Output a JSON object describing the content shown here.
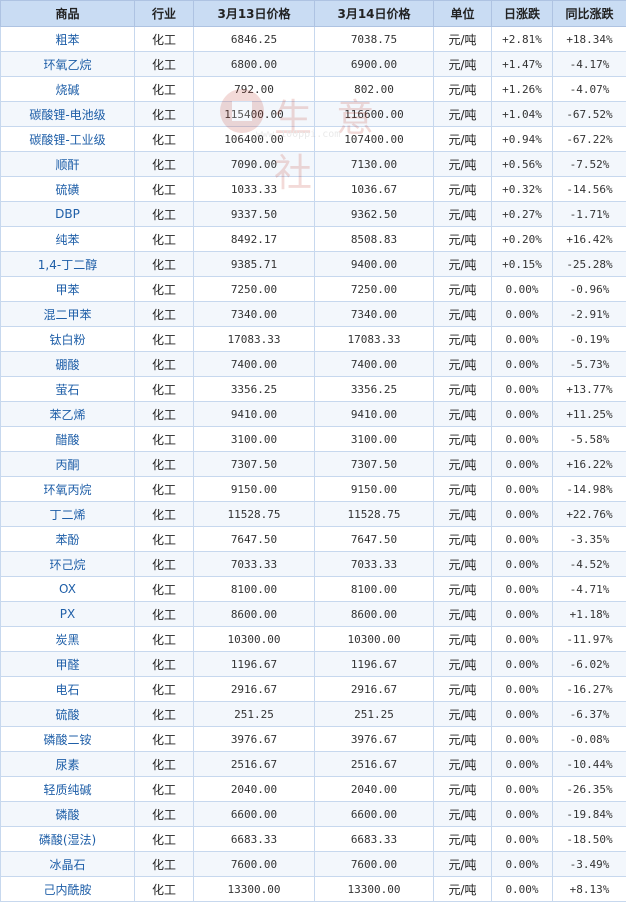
{
  "table": {
    "headers": [
      "商品",
      "行业",
      "3月13日价格",
      "3月14日价格",
      "单位",
      "日涨跌",
      "同比涨跌"
    ],
    "rows": [
      {
        "name": "粗苯",
        "industry": "化工",
        "p13": "6846.25",
        "p14": "7038.75",
        "unit": "元/吨",
        "daily": "+2.81%",
        "yoy": "+18.34%"
      },
      {
        "name": "环氧乙烷",
        "industry": "化工",
        "p13": "6800.00",
        "p14": "6900.00",
        "unit": "元/吨",
        "daily": "+1.47%",
        "yoy": "-4.17%"
      },
      {
        "name": "烧碱",
        "industry": "化工",
        "p13": "792.00",
        "p14": "802.00",
        "unit": "元/吨",
        "daily": "+1.26%",
        "yoy": "-4.07%"
      },
      {
        "name": "碳酸锂-电池级",
        "industry": "化工",
        "p13": "115400.00",
        "p14": "116600.00",
        "unit": "元/吨",
        "daily": "+1.04%",
        "yoy": "-67.52%"
      },
      {
        "name": "碳酸锂-工业级",
        "industry": "化工",
        "p13": "106400.00",
        "p14": "107400.00",
        "unit": "元/吨",
        "daily": "+0.94%",
        "yoy": "-67.22%"
      },
      {
        "name": "顺酐",
        "industry": "化工",
        "p13": "7090.00",
        "p14": "7130.00",
        "unit": "元/吨",
        "daily": "+0.56%",
        "yoy": "-7.52%"
      },
      {
        "name": "硫磺",
        "industry": "化工",
        "p13": "1033.33",
        "p14": "1036.67",
        "unit": "元/吨",
        "daily": "+0.32%",
        "yoy": "-14.56%"
      },
      {
        "name": "DBP",
        "industry": "化工",
        "p13": "9337.50",
        "p14": "9362.50",
        "unit": "元/吨",
        "daily": "+0.27%",
        "yoy": "-1.71%"
      },
      {
        "name": "纯苯",
        "industry": "化工",
        "p13": "8492.17",
        "p14": "8508.83",
        "unit": "元/吨",
        "daily": "+0.20%",
        "yoy": "+16.42%"
      },
      {
        "name": "1,4-丁二醇",
        "industry": "化工",
        "p13": "9385.71",
        "p14": "9400.00",
        "unit": "元/吨",
        "daily": "+0.15%",
        "yoy": "-25.28%"
      },
      {
        "name": "甲苯",
        "industry": "化工",
        "p13": "7250.00",
        "p14": "7250.00",
        "unit": "元/吨",
        "daily": "0.00%",
        "yoy": "-0.96%"
      },
      {
        "name": "混二甲苯",
        "industry": "化工",
        "p13": "7340.00",
        "p14": "7340.00",
        "unit": "元/吨",
        "daily": "0.00%",
        "yoy": "-2.91%"
      },
      {
        "name": "钛白粉",
        "industry": "化工",
        "p13": "17083.33",
        "p14": "17083.33",
        "unit": "元/吨",
        "daily": "0.00%",
        "yoy": "-0.19%"
      },
      {
        "name": "硼酸",
        "industry": "化工",
        "p13": "7400.00",
        "p14": "7400.00",
        "unit": "元/吨",
        "daily": "0.00%",
        "yoy": "-5.73%"
      },
      {
        "name": "萤石",
        "industry": "化工",
        "p13": "3356.25",
        "p14": "3356.25",
        "unit": "元/吨",
        "daily": "0.00%",
        "yoy": "+13.77%"
      },
      {
        "name": "苯乙烯",
        "industry": "化工",
        "p13": "9410.00",
        "p14": "9410.00",
        "unit": "元/吨",
        "daily": "0.00%",
        "yoy": "+11.25%"
      },
      {
        "name": "醋酸",
        "industry": "化工",
        "p13": "3100.00",
        "p14": "3100.00",
        "unit": "元/吨",
        "daily": "0.00%",
        "yoy": "-5.58%"
      },
      {
        "name": "丙酮",
        "industry": "化工",
        "p13": "7307.50",
        "p14": "7307.50",
        "unit": "元/吨",
        "daily": "0.00%",
        "yoy": "+16.22%"
      },
      {
        "name": "环氧丙烷",
        "industry": "化工",
        "p13": "9150.00",
        "p14": "9150.00",
        "unit": "元/吨",
        "daily": "0.00%",
        "yoy": "-14.98%"
      },
      {
        "name": "丁二烯",
        "industry": "化工",
        "p13": "11528.75",
        "p14": "11528.75",
        "unit": "元/吨",
        "daily": "0.00%",
        "yoy": "+22.76%"
      },
      {
        "name": "苯酚",
        "industry": "化工",
        "p13": "7647.50",
        "p14": "7647.50",
        "unit": "元/吨",
        "daily": "0.00%",
        "yoy": "-3.35%"
      },
      {
        "name": "环己烷",
        "industry": "化工",
        "p13": "7033.33",
        "p14": "7033.33",
        "unit": "元/吨",
        "daily": "0.00%",
        "yoy": "-4.52%"
      },
      {
        "name": "OX",
        "industry": "化工",
        "p13": "8100.00",
        "p14": "8100.00",
        "unit": "元/吨",
        "daily": "0.00%",
        "yoy": "-4.71%"
      },
      {
        "name": "PX",
        "industry": "化工",
        "p13": "8600.00",
        "p14": "8600.00",
        "unit": "元/吨",
        "daily": "0.00%",
        "yoy": "+1.18%"
      },
      {
        "name": "炭黑",
        "industry": "化工",
        "p13": "10300.00",
        "p14": "10300.00",
        "unit": "元/吨",
        "daily": "0.00%",
        "yoy": "-11.97%"
      },
      {
        "name": "甲醛",
        "industry": "化工",
        "p13": "1196.67",
        "p14": "1196.67",
        "unit": "元/吨",
        "daily": "0.00%",
        "yoy": "-6.02%"
      },
      {
        "name": "电石",
        "industry": "化工",
        "p13": "2916.67",
        "p14": "2916.67",
        "unit": "元/吨",
        "daily": "0.00%",
        "yoy": "-16.27%"
      },
      {
        "name": "硫酸",
        "industry": "化工",
        "p13": "251.25",
        "p14": "251.25",
        "unit": "元/吨",
        "daily": "0.00%",
        "yoy": "-6.37%"
      },
      {
        "name": "磷酸二铵",
        "industry": "化工",
        "p13": "3976.67",
        "p14": "3976.67",
        "unit": "元/吨",
        "daily": "0.00%",
        "yoy": "-0.08%"
      },
      {
        "name": "尿素",
        "industry": "化工",
        "p13": "2516.67",
        "p14": "2516.67",
        "unit": "元/吨",
        "daily": "0.00%",
        "yoy": "-10.44%"
      },
      {
        "name": "轻质纯碱",
        "industry": "化工",
        "p13": "2040.00",
        "p14": "2040.00",
        "unit": "元/吨",
        "daily": "0.00%",
        "yoy": "-26.35%"
      },
      {
        "name": "磷酸",
        "industry": "化工",
        "p13": "6600.00",
        "p14": "6600.00",
        "unit": "元/吨",
        "daily": "0.00%",
        "yoy": "-19.84%"
      },
      {
        "name": "磷酸(湿法)",
        "industry": "化工",
        "p13": "6683.33",
        "p14": "6683.33",
        "unit": "元/吨",
        "daily": "0.00%",
        "yoy": "-18.50%"
      },
      {
        "name": "冰晶石",
        "industry": "化工",
        "p13": "7600.00",
        "p14": "7600.00",
        "unit": "元/吨",
        "daily": "0.00%",
        "yoy": "-3.49%"
      },
      {
        "name": "己内酰胺",
        "industry": "化工",
        "p13": "13300.00",
        "p14": "13300.00",
        "unit": "元/吨",
        "daily": "0.00%",
        "yoy": "+8.13%"
      }
    ]
  },
  "watermark": {
    "text": "生 意 社",
    "url": "www.100ppi.com"
  },
  "colors": {
    "up": "#e60000",
    "down": "#007a00",
    "header_bg": "#c9dcf3",
    "name_link": "#1f5fa8"
  }
}
